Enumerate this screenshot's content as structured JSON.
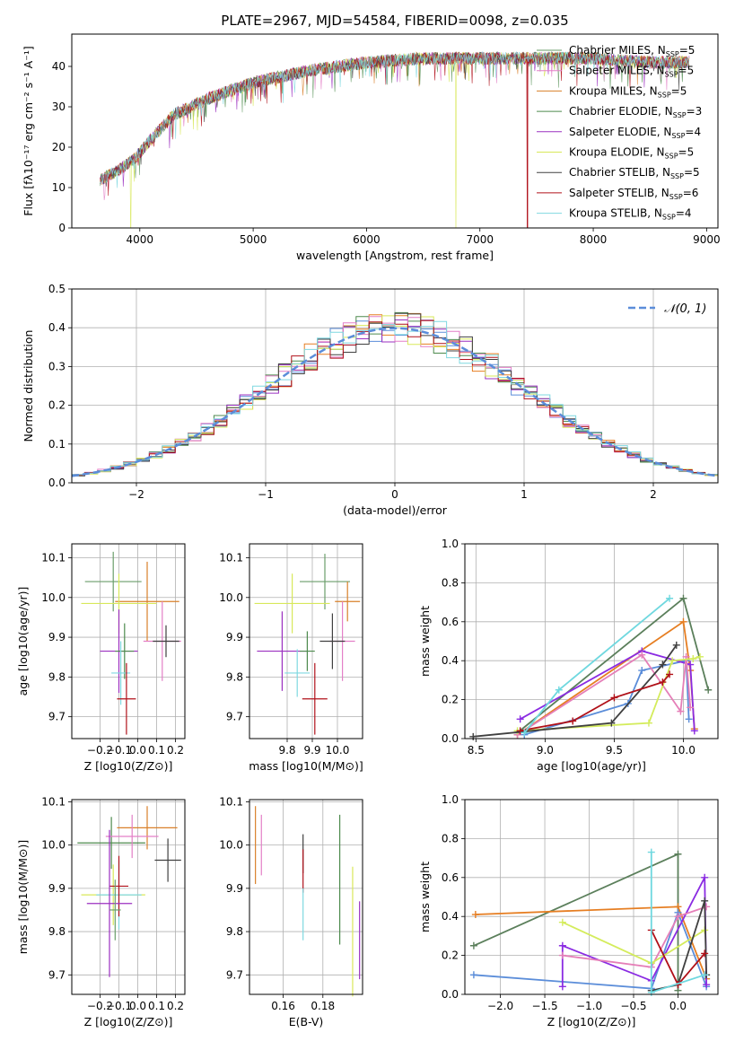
{
  "figure": {
    "title": "PLATE=2967, MJD=54584, FIBERID=0098, z=0.035"
  },
  "colors": {
    "chabrier_miles": "#6a9e6a",
    "salpeter_miles": "#e37fc7",
    "kroupa_miles": "#d9802a",
    "chabrier_elodie": "#4d8a4d",
    "salpeter_elodie": "#9b30c0",
    "kroupa_elodie": "#d8e85a",
    "chabrier_stelib": "#404040",
    "salpeter_stelib": "#b0101a",
    "kroupa_stelib": "#7fd8e0",
    "mass_weight_series": [
      "#5b7f5b",
      "#e67e22",
      "#5b8dd9",
      "#8a2be2",
      "#e57fb8",
      "#d4ec5c",
      "#404040",
      "#b01018",
      "#6fd8df"
    ],
    "normal_curve": "#5b8dd9",
    "grid": "#b0b0b0"
  },
  "chart_data": [
    {
      "id": "spectrum",
      "type": "line",
      "title": "PLATE=2967, MJD=54584, FIBERID=0098, z=0.035",
      "xlabel": "wavelength [Angstrom, rest frame]",
      "ylabel": "Flux [fλ10⁻¹⁷ erg cm⁻² s⁻¹ A⁻¹]",
      "xlim": [
        3400,
        9100
      ],
      "ylim": [
        0,
        48
      ],
      "xticks": [
        4000,
        5000,
        6000,
        7000,
        8000,
        9000
      ],
      "yticks": [
        0,
        10,
        20,
        30,
        40
      ],
      "legend": "top-right",
      "series": [
        {
          "name": "Chabrier MILES, N_SSP=5",
          "key": "chabrier_miles"
        },
        {
          "name": "Salpeter MILES, N_SSP=5",
          "key": "salpeter_miles"
        },
        {
          "name": "Kroupa MILES, N_SSP=5",
          "key": "kroupa_miles"
        },
        {
          "name": "Chabrier ELODIE, N_SSP=3",
          "key": "chabrier_elodie"
        },
        {
          "name": "Salpeter ELODIE, N_SSP=4",
          "key": "salpeter_elodie"
        },
        {
          "name": "Kroupa ELODIE, N_SSP=5",
          "key": "kroupa_elodie"
        },
        {
          "name": "Chabrier STELIB, N_SSP=5",
          "key": "chabrier_stelib"
        },
        {
          "name": "Salpeter STELIB, N_SSP=6",
          "key": "salpeter_stelib"
        },
        {
          "name": "Kroupa STELIB, N_SSP=4",
          "key": "kroupa_stelib"
        }
      ],
      "continuum": [
        [
          3650,
          12
        ],
        [
          3800,
          14
        ],
        [
          3950,
          17
        ],
        [
          4100,
          22
        ],
        [
          4300,
          28
        ],
        [
          4600,
          32
        ],
        [
          5000,
          36
        ],
        [
          5500,
          39
        ],
        [
          6000,
          41
        ],
        [
          6500,
          42
        ],
        [
          7000,
          42
        ],
        [
          7500,
          42
        ],
        [
          8000,
          42
        ],
        [
          8500,
          41
        ],
        [
          8850,
          41
        ]
      ],
      "cutoffs": [
        {
          "key": "salpeter_stelib",
          "x": 7420
        },
        {
          "key": "kroupa_elodie",
          "x": 6790
        },
        {
          "key": "kroupa_elodie",
          "x": 3920
        }
      ]
    },
    {
      "id": "residuals",
      "type": "histogram",
      "xlabel": "(data-model)/error",
      "ylabel": "Normed distribution",
      "xlim": [
        -2.5,
        2.5
      ],
      "ylim": [
        0,
        0.5
      ],
      "xticks": [
        -2,
        -1,
        0,
        1,
        2
      ],
      "yticks": [
        0.0,
        0.1,
        0.2,
        0.3,
        0.4,
        0.5
      ],
      "legend": "top-right",
      "overlay": {
        "name": "N(0,1)",
        "mean": 0,
        "sigma": 1
      }
    },
    {
      "id": "age_vs_Z",
      "type": "errorbar",
      "xlabel": "Z [log10(Z/Z⊙)]",
      "ylabel": "age [log10(age/yr)]",
      "xlim": [
        -0.35,
        0.25
      ],
      "ylim": [
        9.645,
        10.135
      ],
      "xticks": [
        -0.2,
        -0.1,
        0.0,
        0.1,
        0.2
      ],
      "yticks": [
        9.7,
        9.8,
        9.9,
        10.0,
        10.1
      ],
      "points": [
        {
          "key": "chabrier_miles",
          "x": -0.13,
          "xerr": 0.15,
          "y": 10.04,
          "yerr": 0.075
        },
        {
          "key": "kroupa_miles",
          "x": 0.05,
          "xerr": 0.17,
          "y": 9.99,
          "yerr": 0.1
        },
        {
          "key": "kroupa_elodie",
          "x": -0.1,
          "xerr": 0.2,
          "y": 9.985,
          "yerr": 0.075
        },
        {
          "key": "salpeter_miles",
          "x": 0.13,
          "xerr": 0.1,
          "y": 9.89,
          "yerr": 0.1
        },
        {
          "key": "chabrier_stelib",
          "x": 0.15,
          "xerr": 0.07,
          "y": 9.89,
          "yerr": 0.04
        },
        {
          "key": "salpeter_elodie",
          "x": -0.1,
          "xerr": 0.1,
          "y": 9.865,
          "yerr": 0.105
        },
        {
          "key": "chabrier_elodie",
          "x": -0.07,
          "xerr": 0.05,
          "y": 9.865,
          "yerr": 0.07
        },
        {
          "key": "kroupa_stelib",
          "x": -0.09,
          "xerr": 0.05,
          "y": 9.81,
          "yerr": 0.08
        },
        {
          "key": "salpeter_stelib",
          "x": -0.06,
          "xerr": 0.05,
          "y": 9.745,
          "yerr": 0.09
        }
      ]
    },
    {
      "id": "age_vs_mass",
      "type": "errorbar",
      "xlabel": "mass [log10(M/M⊙)]",
      "ylabel": "",
      "xlim": [
        9.65,
        10.1
      ],
      "ylim": [
        9.645,
        10.135
      ],
      "xticks": [
        9.8,
        9.9,
        10.0
      ],
      "yticks": [
        9.7,
        9.8,
        9.9,
        10.0,
        10.1
      ],
      "points": [
        {
          "key": "chabrier_miles",
          "x": 9.95,
          "xerr": 0.1,
          "y": 10.04,
          "yerr": 0.07
        },
        {
          "key": "kroupa_miles",
          "x": 10.04,
          "xerr": 0.05,
          "y": 9.99,
          "yerr": 0.05
        },
        {
          "key": "kroupa_elodie",
          "x": 9.82,
          "xerr": 0.15,
          "y": 9.985,
          "yerr": 0.075
        },
        {
          "key": "salpeter_miles",
          "x": 10.02,
          "xerr": 0.05,
          "y": 9.89,
          "yerr": 0.1
        },
        {
          "key": "chabrier_stelib",
          "x": 9.98,
          "xerr": 0.05,
          "y": 9.89,
          "yerr": 0.07
        },
        {
          "key": "salpeter_elodie",
          "x": 9.78,
          "xerr": 0.1,
          "y": 9.865,
          "yerr": 0.1
        },
        {
          "key": "chabrier_elodie",
          "x": 9.88,
          "xerr": 0.03,
          "y": 9.865,
          "yerr": 0.05
        },
        {
          "key": "kroupa_stelib",
          "x": 9.84,
          "xerr": 0.05,
          "y": 9.81,
          "yerr": 0.06
        },
        {
          "key": "salpeter_stelib",
          "x": 9.91,
          "xerr": 0.05,
          "y": 9.745,
          "yerr": 0.09
        }
      ]
    },
    {
      "id": "weight_vs_age",
      "type": "line",
      "xlabel": "age  [log10(age/yr)]",
      "ylabel": "mass weight",
      "xlim": [
        8.42,
        10.25
      ],
      "ylim": [
        0,
        1.0
      ],
      "xticks": [
        8.5,
        9.0,
        9.5,
        10.0
      ],
      "yticks": [
        0.0,
        0.2,
        0.4,
        0.6,
        0.8,
        1.0
      ],
      "series": [
        {
          "key": "chabrier_elodie",
          "x": [
            8.8,
            10.0,
            10.18
          ],
          "y": [
            0.03,
            0.72,
            0.25
          ]
        },
        {
          "key": "kroupa_miles",
          "x": [
            8.8,
            10.0,
            10.05,
            10.08
          ],
          "y": [
            0.02,
            0.6,
            0.35,
            0.05
          ]
        },
        {
          "key": "kroupa_stelib",
          "x": [
            8.85,
            9.6,
            9.7,
            10.02,
            10.04
          ],
          "y": [
            0.02,
            0.18,
            0.35,
            0.4,
            0.1
          ]
        },
        {
          "key": "salpeter_elodie",
          "x": [
            8.82,
            9.7,
            10.05,
            10.08
          ],
          "y": [
            0.1,
            0.45,
            0.38,
            0.04
          ]
        },
        {
          "key": "salpeter_miles",
          "x": [
            8.8,
            9.7,
            9.98,
            10.02,
            10.05
          ],
          "y": [
            0.02,
            0.43,
            0.14,
            0.42,
            0.16
          ]
        },
        {
          "key": "kroupa_elodie",
          "x": [
            8.8,
            9.75,
            9.92,
            10.07,
            10.12
          ],
          "y": [
            0.04,
            0.08,
            0.4,
            0.41,
            0.42
          ]
        },
        {
          "key": "chabrier_stelib",
          "x": [
            8.48,
            9.48,
            9.85,
            9.95
          ],
          "y": [
            0.01,
            0.08,
            0.38,
            0.48
          ]
        },
        {
          "key": "salpeter_stelib",
          "x": [
            8.82,
            9.2,
            9.5,
            9.85,
            9.9
          ],
          "y": [
            0.04,
            0.09,
            0.21,
            0.29,
            0.33
          ]
        },
        {
          "key": "kroupa_stelib",
          "x": [
            8.85,
            9.1,
            9.9
          ],
          "y": [
            0.03,
            0.25,
            0.72
          ]
        }
      ]
    },
    {
      "id": "mass_vs_Z",
      "type": "errorbar",
      "xlabel": "Z [log10(Z/Z⊙)]",
      "ylabel": "mass [log10(M/M⊙)]",
      "xlim": [
        -0.35,
        0.25
      ],
      "ylim": [
        9.655,
        10.105
      ],
      "xticks": [
        -0.2,
        -0.1,
        0.0,
        0.1,
        0.2
      ],
      "yticks": [
        9.7,
        9.8,
        9.9,
        10.0,
        10.1
      ],
      "points": [
        {
          "key": "chabrier_elodie",
          "x": -0.14,
          "xerr": 0.18,
          "y": 10.005,
          "yerr": 0.06
        },
        {
          "key": "kroupa_miles",
          "x": 0.05,
          "xerr": 0.16,
          "y": 10.04,
          "yerr": 0.05
        },
        {
          "key": "salpeter_miles",
          "x": -0.03,
          "xerr": 0.14,
          "y": 10.02,
          "yerr": 0.05
        },
        {
          "key": "chabrier_stelib",
          "x": 0.16,
          "xerr": 0.07,
          "y": 9.965,
          "yerr": 0.05
        },
        {
          "key": "kroupa_elodie",
          "x": -0.13,
          "xerr": 0.17,
          "y": 9.885,
          "yerr": 0.07
        },
        {
          "key": "kroupa_stelib",
          "x": -0.1,
          "xerr": 0.12,
          "y": 9.885,
          "yerr": 0.08
        },
        {
          "key": "salpeter_stelib",
          "x": -0.1,
          "xerr": 0.05,
          "y": 9.905,
          "yerr": 0.07
        },
        {
          "key": "salpeter_elodie",
          "x": -0.15,
          "xerr": 0.12,
          "y": 9.865,
          "yerr": 0.17
        },
        {
          "key": "chabrier_miles",
          "x": -0.12,
          "xerr": 0.03,
          "y": 9.85,
          "yerr": 0.07
        }
      ]
    },
    {
      "id": "mass_vs_ebv",
      "type": "errorbar",
      "xlabel": "E(B-V)",
      "ylabel": "",
      "xlim": [
        0.143,
        0.2
      ],
      "ylim": [
        9.655,
        10.105
      ],
      "xticks": [
        0.16,
        0.18
      ],
      "yticks": [
        9.7,
        9.8,
        9.9,
        10.0,
        10.1
      ],
      "points": [
        {
          "key": "kroupa_miles",
          "x": 0.146,
          "y": 10.0,
          "yerr": 0.09
        },
        {
          "key": "salpeter_miles",
          "x": 0.149,
          "y": 10.0,
          "yerr": 0.07
        },
        {
          "key": "chabrier_stelib",
          "x": 0.17,
          "y": 9.98,
          "yerr": 0.045
        },
        {
          "key": "salpeter_stelib",
          "x": 0.17,
          "y": 9.94,
          "yerr": 0.05
        },
        {
          "key": "kroupa_stelib",
          "x": 0.17,
          "y": 9.84,
          "yerr": 0.06
        },
        {
          "key": "chabrier_elodie",
          "x": 0.1885,
          "y": 9.92,
          "yerr": 0.15
        },
        {
          "key": "kroupa_elodie",
          "x": 0.195,
          "y": 9.8,
          "yerr": 0.15
        },
        {
          "key": "salpeter_elodie",
          "x": 0.1985,
          "y": 9.78,
          "yerr": 0.09
        }
      ]
    },
    {
      "id": "weight_vs_Z",
      "type": "line",
      "xlabel": "Z [log10(Z/Z⊙)]",
      "ylabel": "mass weight",
      "xlim": [
        -2.4,
        0.45
      ],
      "ylim": [
        0,
        1.0
      ],
      "xticks": [
        -2.0,
        -1.5,
        -1.0,
        -0.5,
        0.0
      ],
      "yticks": [
        0.0,
        0.2,
        0.4,
        0.6,
        0.8,
        1.0
      ],
      "series": [
        {
          "key": "chabrier_elodie",
          "x": [
            -2.3,
            0.0,
            0.0
          ],
          "y": [
            0.25,
            0.72,
            0.02
          ]
        },
        {
          "key": "salpeter_elodie",
          "x": [
            -2.28,
            0.0,
            0.32
          ],
          "y": [
            0.41,
            0.45,
            0.08
          ]
        },
        {
          "key": "kroupa_elodie",
          "x": [
            -2.3,
            -0.3,
            0.0,
            0.32
          ],
          "y": [
            0.1,
            0.03,
            0.42,
            0.04
          ]
        },
        {
          "key": "kroupa_miles",
          "x": [
            -1.3,
            -1.3,
            -0.3,
            0.3,
            0.32
          ],
          "y": [
            0.04,
            0.25,
            0.07,
            0.6,
            0.05
          ]
        },
        {
          "key": "salpeter_miles",
          "x": [
            -1.3,
            -0.3,
            0.0,
            0.32
          ],
          "y": [
            0.2,
            0.14,
            0.4,
            0.45
          ]
        },
        {
          "key": "chabrier_miles",
          "x": [
            -1.3,
            -0.3,
            0.3
          ],
          "y": [
            0.37,
            0.16,
            0.33
          ]
        },
        {
          "key": "chabrier_stelib",
          "x": [
            -0.3,
            0.0,
            0.3,
            0.32
          ],
          "y": [
            0.02,
            0.05,
            0.48,
            0.1
          ]
        },
        {
          "key": "salpeter_stelib",
          "x": [
            -0.3,
            0.0,
            0.3
          ],
          "y": [
            0.33,
            0.05,
            0.21
          ]
        },
        {
          "key": "kroupa_stelib",
          "x": [
            -0.3,
            -0.3,
            0.3
          ],
          "y": [
            0.73,
            0.01,
            0.1
          ]
        }
      ]
    }
  ]
}
